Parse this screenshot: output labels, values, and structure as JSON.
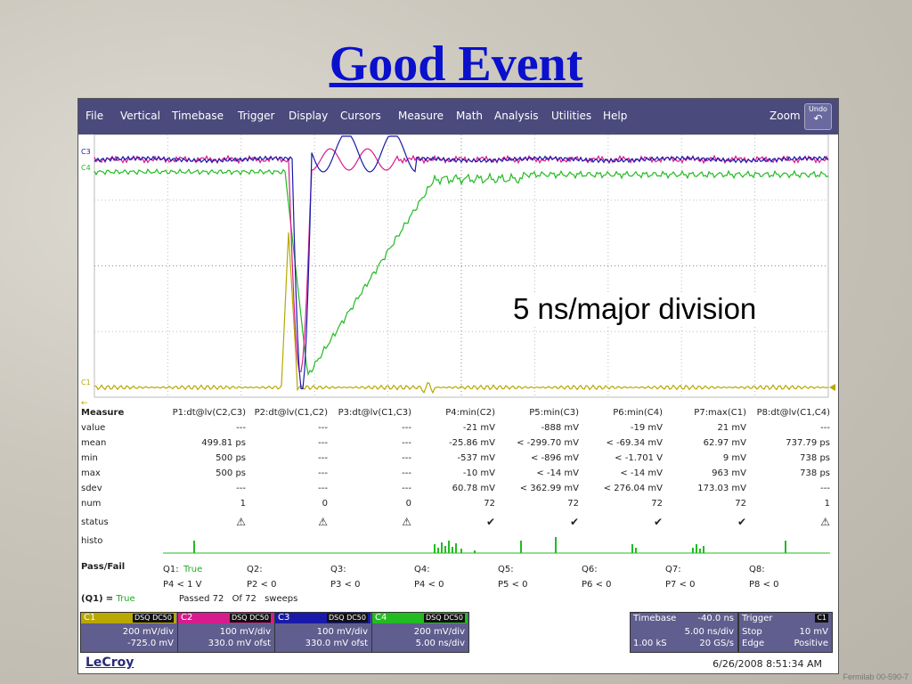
{
  "slide": {
    "title": "Good Event",
    "annotation": "5 ns/major division",
    "credit": "Fermilab 00-590-7"
  },
  "menu": {
    "items": [
      "File",
      "Vertical",
      "Timebase",
      "Trigger",
      "Display",
      "Cursors",
      "Measure",
      "Math",
      "Analysis",
      "Utilities",
      "Help"
    ],
    "zoom_label": "Zoom",
    "undo_label": "Undo"
  },
  "trace_labels": {
    "c3": "C3",
    "c4": "C4",
    "c1": "C1"
  },
  "colors": {
    "c1": "#b8a800",
    "c2": "#d81b8c",
    "c3": "#1a1aaa",
    "c4": "#22bb22",
    "menubar": "#4b4a7d",
    "title": "#0a10cc"
  },
  "measure": {
    "header_label": "Measure",
    "params": [
      "P1:dt@lv(C2,C3)",
      "P2:dt@lv(C1,C2)",
      "P3:dt@lv(C1,C3)",
      "P4:min(C2)",
      "P5:min(C3)",
      "P6:min(C4)",
      "P7:max(C1)",
      "P8:dt@lv(C1,C4)"
    ],
    "rows": [
      {
        "label": "value",
        "cells": [
          "---",
          "---",
          "---",
          "-21 mV",
          "-888 mV",
          "-19 mV",
          "21 mV",
          "---"
        ]
      },
      {
        "label": "mean",
        "cells": [
          "499.81 ps",
          "---",
          "---",
          "-25.86 mV",
          "< -299.70 mV",
          "< -69.34 mV",
          "62.97 mV",
          "737.79 ps"
        ]
      },
      {
        "label": "min",
        "cells": [
          "500 ps",
          "---",
          "---",
          "-537 mV",
          "< -896 mV",
          "< -1.701 V",
          "9 mV",
          "738 ps"
        ]
      },
      {
        "label": "max",
        "cells": [
          "500 ps",
          "---",
          "---",
          "-10 mV",
          "< -14 mV",
          "< -14 mV",
          "963 mV",
          "738 ps"
        ]
      },
      {
        "label": "sdev",
        "cells": [
          "---",
          "---",
          "---",
          "60.78 mV",
          "< 362.99 mV",
          "< 276.04 mV",
          "173.03 mV",
          "---"
        ]
      },
      {
        "label": "num",
        "cells": [
          "1",
          "0",
          "0",
          "72",
          "72",
          "72",
          "72",
          "1"
        ]
      }
    ],
    "status_label": "status",
    "status_icons": [
      "warning-icon",
      "warning-icon",
      "warning-icon",
      "check-icon",
      "check-icon",
      "check-icon",
      "check-icon",
      "warning-icon"
    ],
    "histo_label": "histo",
    "passfail_label": "Pass/Fail",
    "q_names": [
      "Q1:",
      "Q2:",
      "Q3:",
      "Q4:",
      "Q5:",
      "Q6:",
      "Q7:",
      "Q8:"
    ],
    "q1_value": "True",
    "q_conditions": [
      "P4 < 1 V",
      "P2 < 0",
      "P3 < 0",
      "P4 < 0",
      "P5 < 0",
      "P6 < 0",
      "P7 < 0",
      "P8 < 0"
    ],
    "summary": {
      "q1_label": "(Q1)",
      "equals": "=",
      "q1_state": "True",
      "passed_text": "Passed",
      "passed": "72",
      "of_text": "Of",
      "total": "72",
      "sweeps_text": "sweeps"
    }
  },
  "channels": [
    {
      "name": "C1",
      "badge": "DSQ DC50",
      "vdiv": "200 mV/div",
      "offset": "-725.0 mV"
    },
    {
      "name": "C2",
      "badge": "DSQ DC50",
      "vdiv": "100 mV/div",
      "offset": "330.0 mV ofst"
    },
    {
      "name": "C3",
      "badge": "DSQ DC50",
      "vdiv": "100 mV/div",
      "offset": "330.0 mV ofst"
    },
    {
      "name": "C4",
      "badge": "DSQ DC50",
      "vdiv": "200 mV/div",
      "offset": "5.00 ns/div"
    }
  ],
  "timebase": {
    "label": "Timebase",
    "delay": "-40.0 ns",
    "tdiv": "5.00 ns/div",
    "samples": "1.00 kS",
    "rate": "20 GS/s"
  },
  "trigger": {
    "label": "Trigger",
    "channel": "C1",
    "mode": "Stop",
    "level": "10 mV",
    "type": "Edge",
    "slope": "Positive"
  },
  "footer": {
    "brand": "LeCroy",
    "timestamp": "6/26/2008 8:51:34 AM"
  }
}
